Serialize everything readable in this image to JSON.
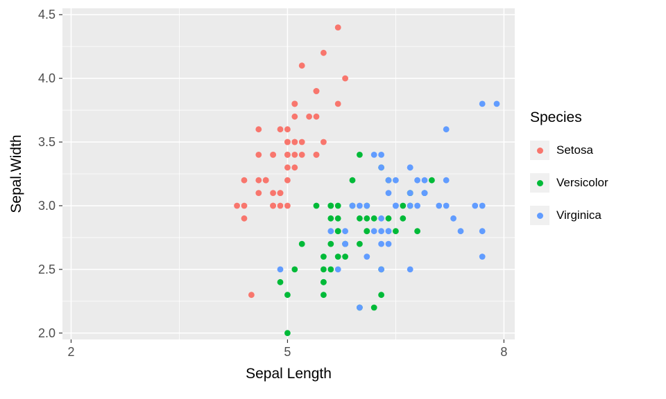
{
  "figure": {
    "background": "#FFFFFF"
  },
  "chart_data": {
    "type": "scatter",
    "title": "",
    "xlabel": "Sepal Length",
    "ylabel": "Sepal.Width",
    "legend_title": "Species",
    "legend_position": "right",
    "panel_background": "#EBEBEB",
    "grid_color": "#FFFFFF",
    "tick_label_color": "#4D4D4D",
    "tick_mark_color": "#333333",
    "xlim": [
      1.88,
      8.15
    ],
    "ylim": [
      1.95,
      4.55
    ],
    "x_ticks": [
      2,
      5,
      8
    ],
    "x_tick_labels": [
      "2",
      "5",
      "8"
    ],
    "y_ticks": [
      2.0,
      2.5,
      3.0,
      3.5,
      4.0,
      4.5
    ],
    "y_tick_labels": [
      "2.0",
      "2.5",
      "3.0",
      "3.5",
      "4.0",
      "4.5"
    ],
    "x_minor": [
      3.5,
      6.5
    ],
    "y_minor": [
      2.25,
      2.75,
      3.25,
      3.75,
      4.25
    ],
    "grid": true,
    "series": [
      {
        "name": "Setosa",
        "color": "#F8766D",
        "points": [
          [
            5.1,
            3.5
          ],
          [
            4.9,
            3.0
          ],
          [
            4.7,
            3.2
          ],
          [
            4.6,
            3.1
          ],
          [
            5.0,
            3.6
          ],
          [
            5.4,
            3.9
          ],
          [
            4.6,
            3.4
          ],
          [
            5.0,
            3.4
          ],
          [
            4.4,
            2.9
          ],
          [
            4.9,
            3.1
          ],
          [
            5.4,
            3.7
          ],
          [
            4.8,
            3.4
          ],
          [
            4.8,
            3.0
          ],
          [
            4.3,
            3.0
          ],
          [
            5.8,
            4.0
          ],
          [
            5.7,
            4.4
          ],
          [
            5.4,
            3.9
          ],
          [
            5.1,
            3.5
          ],
          [
            5.7,
            3.8
          ],
          [
            5.1,
            3.8
          ],
          [
            5.4,
            3.4
          ],
          [
            5.1,
            3.7
          ],
          [
            4.6,
            3.6
          ],
          [
            5.1,
            3.3
          ],
          [
            4.8,
            3.4
          ],
          [
            5.0,
            3.0
          ],
          [
            5.0,
            3.4
          ],
          [
            5.2,
            3.5
          ],
          [
            5.2,
            3.4
          ],
          [
            4.7,
            3.2
          ],
          [
            4.8,
            3.1
          ],
          [
            5.4,
            3.4
          ],
          [
            5.2,
            4.1
          ],
          [
            5.5,
            4.2
          ],
          [
            4.9,
            3.1
          ],
          [
            5.0,
            3.2
          ],
          [
            5.5,
            3.5
          ],
          [
            4.9,
            3.6
          ],
          [
            4.4,
            3.0
          ],
          [
            5.1,
            3.4
          ],
          [
            5.0,
            3.5
          ],
          [
            4.5,
            2.3
          ],
          [
            4.4,
            3.2
          ],
          [
            5.0,
            3.5
          ],
          [
            5.1,
            3.8
          ],
          [
            4.8,
            3.0
          ],
          [
            5.1,
            3.8
          ],
          [
            4.6,
            3.2
          ],
          [
            5.3,
            3.7
          ],
          [
            5.0,
            3.3
          ]
        ]
      },
      {
        "name": "Versicolor",
        "color": "#00BA38",
        "points": [
          [
            7.0,
            3.2
          ],
          [
            6.4,
            3.2
          ],
          [
            6.9,
            3.1
          ],
          [
            5.5,
            2.3
          ],
          [
            6.5,
            2.8
          ],
          [
            5.7,
            2.8
          ],
          [
            6.3,
            3.3
          ],
          [
            4.9,
            2.4
          ],
          [
            6.6,
            2.9
          ],
          [
            5.2,
            2.7
          ],
          [
            5.0,
            2.0
          ],
          [
            5.9,
            3.0
          ],
          [
            6.0,
            2.2
          ],
          [
            6.1,
            2.9
          ],
          [
            5.6,
            2.9
          ],
          [
            6.7,
            3.1
          ],
          [
            5.6,
            3.0
          ],
          [
            5.8,
            2.7
          ],
          [
            6.2,
            2.2
          ],
          [
            5.6,
            2.5
          ],
          [
            5.9,
            3.2
          ],
          [
            6.1,
            2.8
          ],
          [
            6.3,
            2.5
          ],
          [
            6.1,
            2.8
          ],
          [
            6.4,
            2.9
          ],
          [
            6.6,
            3.0
          ],
          [
            6.8,
            2.8
          ],
          [
            6.7,
            3.0
          ],
          [
            6.0,
            2.9
          ],
          [
            5.7,
            2.6
          ],
          [
            5.5,
            2.4
          ],
          [
            5.5,
            2.4
          ],
          [
            5.8,
            2.7
          ],
          [
            6.0,
            2.7
          ],
          [
            5.4,
            3.0
          ],
          [
            6.0,
            3.4
          ],
          [
            6.7,
            3.1
          ],
          [
            6.3,
            2.3
          ],
          [
            5.6,
            3.0
          ],
          [
            5.5,
            2.5
          ],
          [
            5.5,
            2.6
          ],
          [
            6.1,
            3.0
          ],
          [
            5.8,
            2.6
          ],
          [
            5.0,
            2.3
          ],
          [
            5.6,
            2.7
          ],
          [
            5.7,
            3.0
          ],
          [
            5.7,
            2.9
          ],
          [
            6.2,
            2.9
          ],
          [
            5.1,
            2.5
          ],
          [
            5.7,
            2.8
          ]
        ]
      },
      {
        "name": "Virginica",
        "color": "#619CFF",
        "points": [
          [
            6.3,
            3.3
          ],
          [
            5.8,
            2.7
          ],
          [
            7.1,
            3.0
          ],
          [
            6.3,
            2.9
          ],
          [
            6.5,
            3.0
          ],
          [
            7.6,
            3.0
          ],
          [
            4.9,
            2.5
          ],
          [
            7.3,
            2.9
          ],
          [
            6.7,
            2.5
          ],
          [
            7.2,
            3.6
          ],
          [
            6.5,
            3.2
          ],
          [
            6.4,
            2.7
          ],
          [
            6.8,
            3.0
          ],
          [
            5.7,
            2.5
          ],
          [
            5.8,
            2.8
          ],
          [
            6.4,
            3.2
          ],
          [
            6.5,
            3.0
          ],
          [
            7.7,
            3.8
          ],
          [
            7.7,
            2.6
          ],
          [
            6.0,
            2.2
          ],
          [
            6.9,
            3.2
          ],
          [
            5.6,
            2.8
          ],
          [
            7.7,
            2.8
          ],
          [
            6.3,
            2.7
          ],
          [
            6.7,
            3.3
          ],
          [
            7.2,
            3.2
          ],
          [
            6.2,
            2.8
          ],
          [
            6.1,
            3.0
          ],
          [
            6.4,
            2.8
          ],
          [
            7.2,
            3.0
          ],
          [
            7.4,
            2.8
          ],
          [
            7.9,
            3.8
          ],
          [
            6.4,
            2.8
          ],
          [
            6.3,
            2.8
          ],
          [
            6.1,
            2.6
          ],
          [
            7.7,
            3.0
          ],
          [
            6.3,
            3.4
          ],
          [
            6.4,
            3.1
          ],
          [
            6.0,
            3.0
          ],
          [
            6.9,
            3.1
          ],
          [
            6.7,
            3.1
          ],
          [
            6.9,
            3.1
          ],
          [
            5.8,
            2.7
          ],
          [
            6.8,
            3.2
          ],
          [
            6.7,
            3.3
          ],
          [
            6.7,
            3.0
          ],
          [
            6.3,
            2.5
          ],
          [
            6.5,
            3.0
          ],
          [
            6.2,
            3.4
          ],
          [
            5.9,
            3.0
          ]
        ]
      }
    ]
  }
}
